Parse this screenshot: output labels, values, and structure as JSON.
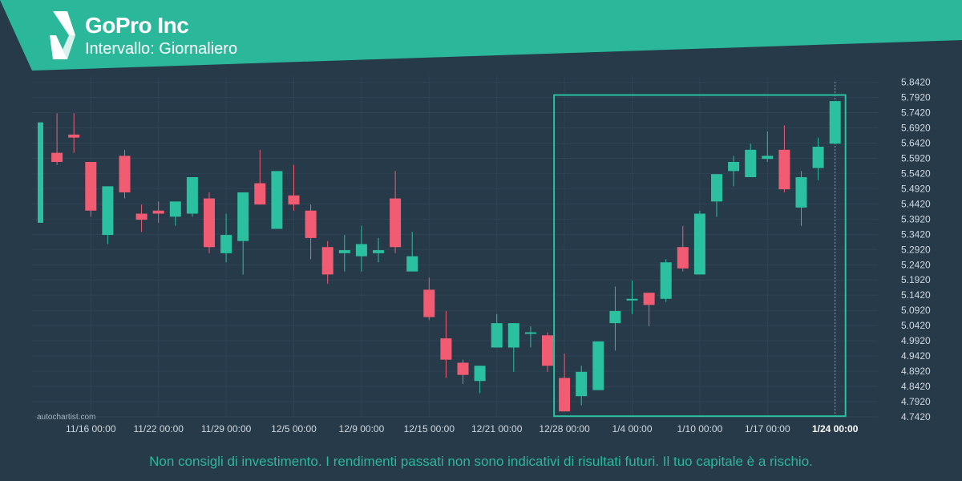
{
  "header": {
    "title": "GoPro Inc",
    "subtitle": "Intervallo: Giornaliero"
  },
  "watermark": "autochartist.com",
  "disclaimer": "Non consigli di investimento. I rendimenti passati non sono indicativi di risultati futuri. Il tuo capitale è a rischio.",
  "colors": {
    "background": "#263a4a",
    "brand": "#2bb89a",
    "up": "#2bc0a0",
    "down": "#f25c72",
    "grid": "#2e4455",
    "pattern_box": "#2bc0a0"
  },
  "chart_data": {
    "type": "candlestick",
    "ylim": [
      4.742,
      5.862
    ],
    "y_ticks": [
      "5.8420",
      "5.7920",
      "5.7420",
      "5.6920",
      "5.6420",
      "5.5920",
      "5.5420",
      "5.4920",
      "5.4420",
      "5.3920",
      "5.3420",
      "5.2920",
      "5.2420",
      "5.1920",
      "5.1420",
      "5.0920",
      "5.0420",
      "4.9920",
      "4.9420",
      "4.8920",
      "4.8420",
      "4.7920",
      "4.7420"
    ],
    "x_labels": [
      {
        "label": "11/16 00:00",
        "index": 3
      },
      {
        "label": "11/22 00:00",
        "index": 7
      },
      {
        "label": "11/29 00:00",
        "index": 11
      },
      {
        "label": "12/5 00:00",
        "index": 15
      },
      {
        "label": "12/9 00:00",
        "index": 19
      },
      {
        "label": "12/15 00:00",
        "index": 23
      },
      {
        "label": "12/21 00:00",
        "index": 27
      },
      {
        "label": "12/28 00:00",
        "index": 31
      },
      {
        "label": "1/4 00:00",
        "index": 35
      },
      {
        "label": "1/10 00:00",
        "index": 39
      },
      {
        "label": "1/17 00:00",
        "index": 43
      },
      {
        "label": "1/24 00:00",
        "index": 47
      }
    ],
    "candles": [
      {
        "o": 5.38,
        "h": 5.71,
        "l": 5.38,
        "c": 5.71
      },
      {
        "o": 5.61,
        "h": 5.74,
        "l": 5.57,
        "c": 5.58
      },
      {
        "o": 5.67,
        "h": 5.74,
        "l": 5.61,
        "c": 5.66
      },
      {
        "o": 5.58,
        "h": 5.58,
        "l": 5.4,
        "c": 5.42
      },
      {
        "o": 5.34,
        "h": 5.5,
        "l": 5.31,
        "c": 5.5
      },
      {
        "o": 5.6,
        "h": 5.62,
        "l": 5.46,
        "c": 5.48
      },
      {
        "o": 5.41,
        "h": 5.44,
        "l": 5.35,
        "c": 5.39
      },
      {
        "o": 5.42,
        "h": 5.45,
        "l": 5.38,
        "c": 5.41
      },
      {
        "o": 5.4,
        "h": 5.45,
        "l": 5.37,
        "c": 5.45
      },
      {
        "o": 5.41,
        "h": 5.53,
        "l": 5.4,
        "c": 5.53
      },
      {
        "o": 5.46,
        "h": 5.48,
        "l": 5.28,
        "c": 5.3
      },
      {
        "o": 5.28,
        "h": 5.41,
        "l": 5.25,
        "c": 5.34
      },
      {
        "o": 5.32,
        "h": 5.48,
        "l": 5.21,
        "c": 5.48
      },
      {
        "o": 5.51,
        "h": 5.62,
        "l": 5.44,
        "c": 5.44
      },
      {
        "o": 5.36,
        "h": 5.55,
        "l": 5.36,
        "c": 5.55
      },
      {
        "o": 5.47,
        "h": 5.57,
        "l": 5.42,
        "c": 5.44
      },
      {
        "o": 5.42,
        "h": 5.44,
        "l": 5.26,
        "c": 5.33
      },
      {
        "o": 5.3,
        "h": 5.32,
        "l": 5.18,
        "c": 5.21
      },
      {
        "o": 5.28,
        "h": 5.34,
        "l": 5.22,
        "c": 5.29
      },
      {
        "o": 5.27,
        "h": 5.37,
        "l": 5.22,
        "c": 5.31
      },
      {
        "o": 5.28,
        "h": 5.33,
        "l": 5.25,
        "c": 5.29
      },
      {
        "o": 5.46,
        "h": 5.55,
        "l": 5.28,
        "c": 5.3
      },
      {
        "o": 5.22,
        "h": 5.35,
        "l": 5.22,
        "c": 5.27
      },
      {
        "o": 5.16,
        "h": 5.2,
        "l": 5.06,
        "c": 5.07
      },
      {
        "o": 5.0,
        "h": 5.09,
        "l": 4.87,
        "c": 4.93
      },
      {
        "o": 4.92,
        "h": 4.93,
        "l": 4.85,
        "c": 4.88
      },
      {
        "o": 4.86,
        "h": 4.91,
        "l": 4.82,
        "c": 4.91
      },
      {
        "o": 4.97,
        "h": 5.08,
        "l": 4.97,
        "c": 5.05
      },
      {
        "o": 4.97,
        "h": 5.05,
        "l": 4.89,
        "c": 5.05
      },
      {
        "o": 5.02,
        "h": 5.04,
        "l": 4.97,
        "c": 5.02
      },
      {
        "o": 5.01,
        "h": 5.02,
        "l": 4.89,
        "c": 4.91
      },
      {
        "o": 4.87,
        "h": 4.95,
        "l": 4.76,
        "c": 4.76
      },
      {
        "o": 4.81,
        "h": 4.91,
        "l": 4.78,
        "c": 4.89
      },
      {
        "o": 4.83,
        "h": 4.99,
        "l": 4.83,
        "c": 4.99
      },
      {
        "o": 5.05,
        "h": 5.17,
        "l": 4.96,
        "c": 5.09
      },
      {
        "o": 5.13,
        "h": 5.19,
        "l": 5.08,
        "c": 5.13
      },
      {
        "o": 5.15,
        "h": 5.15,
        "l": 5.04,
        "c": 5.11
      },
      {
        "o": 5.13,
        "h": 5.26,
        "l": 5.12,
        "c": 5.25
      },
      {
        "o": 5.3,
        "h": 5.37,
        "l": 5.22,
        "c": 5.23
      },
      {
        "o": 5.21,
        "h": 5.42,
        "l": 5.21,
        "c": 5.41
      },
      {
        "o": 5.45,
        "h": 5.54,
        "l": 5.4,
        "c": 5.54
      },
      {
        "o": 5.55,
        "h": 5.6,
        "l": 5.5,
        "c": 5.58
      },
      {
        "o": 5.53,
        "h": 5.64,
        "l": 5.53,
        "c": 5.62
      },
      {
        "o": 5.59,
        "h": 5.68,
        "l": 5.58,
        "c": 5.6
      },
      {
        "o": 5.62,
        "h": 5.7,
        "l": 5.48,
        "c": 5.49
      },
      {
        "o": 5.43,
        "h": 5.55,
        "l": 5.37,
        "c": 5.53
      },
      {
        "o": 5.56,
        "h": 5.66,
        "l": 5.52,
        "c": 5.63
      },
      {
        "o": 5.64,
        "h": 5.78,
        "l": 5.64,
        "c": 5.78
      }
    ],
    "pattern_box": {
      "from_index": 31,
      "to_index": 47,
      "y_top": 5.8,
      "y_bottom": 4.76
    },
    "last_bar_marker_index": 47
  }
}
